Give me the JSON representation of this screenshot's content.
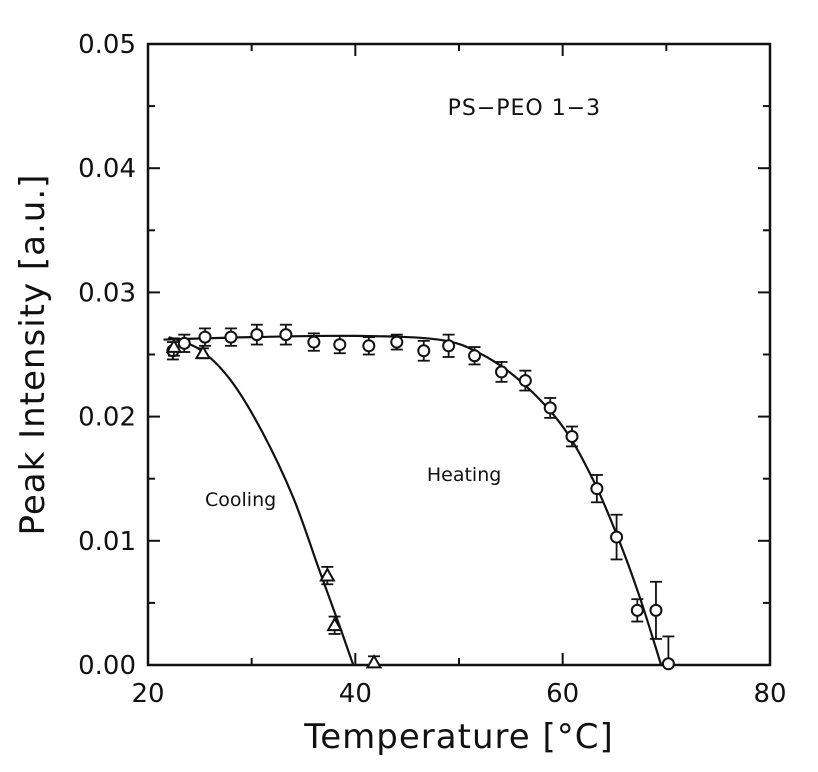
{
  "chart_data": {
    "type": "scatter",
    "title": "",
    "xlabel": "Temperature [°C]",
    "ylabel": "Peak Intensity [a.u.]",
    "xlim": [
      20,
      80
    ],
    "ylim": [
      0,
      0.05
    ],
    "x_ticks": [
      "20",
      "40",
      "60",
      "80"
    ],
    "y_ticks": [
      "0.00",
      "0.01",
      "0.02",
      "0.03",
      "0.04",
      "0.05"
    ],
    "annotations": {
      "sample": "PS−PEO 1−3",
      "heating": "Heating",
      "cooling": "Cooling"
    },
    "series": [
      {
        "name": "Heating",
        "marker": "circle",
        "points": [
          {
            "x": 22.4,
            "y": 0.0253,
            "err": 0.0007
          },
          {
            "x": 23.5,
            "y": 0.0259,
            "err": 0.0007
          },
          {
            "x": 25.5,
            "y": 0.0264,
            "err": 0.0007
          },
          {
            "x": 28.0,
            "y": 0.0264,
            "err": 0.0007
          },
          {
            "x": 30.5,
            "y": 0.0266,
            "err": 0.0008
          },
          {
            "x": 33.3,
            "y": 0.0266,
            "err": 0.0008
          },
          {
            "x": 36.0,
            "y": 0.026,
            "err": 0.0007
          },
          {
            "x": 38.5,
            "y": 0.0258,
            "err": 0.0007
          },
          {
            "x": 41.3,
            "y": 0.0257,
            "err": 0.0007
          },
          {
            "x": 44.0,
            "y": 0.026,
            "err": 0.0006
          },
          {
            "x": 46.6,
            "y": 0.0253,
            "err": 0.0008
          },
          {
            "x": 49.0,
            "y": 0.0257,
            "err": 0.0009
          },
          {
            "x": 51.5,
            "y": 0.0249,
            "err": 0.0007
          },
          {
            "x": 54.1,
            "y": 0.0236,
            "err": 0.0008
          },
          {
            "x": 56.4,
            "y": 0.0229,
            "err": 0.0008
          },
          {
            "x": 58.8,
            "y": 0.0207,
            "err": 0.0008
          },
          {
            "x": 60.9,
            "y": 0.0184,
            "err": 0.0008
          },
          {
            "x": 63.3,
            "y": 0.0142,
            "err": 0.0011
          },
          {
            "x": 65.2,
            "y": 0.0103,
            "err": 0.0018
          },
          {
            "x": 67.2,
            "y": 0.0044,
            "err": 0.0009
          },
          {
            "x": 69.0,
            "y": 0.0044,
            "err": 0.0023
          },
          {
            "x": 70.2,
            "y": 0.0001,
            "err": 0.0022
          }
        ],
        "fit": [
          [
            21.5,
            0.0262
          ],
          [
            30,
            0.0264
          ],
          [
            40,
            0.0265
          ],
          [
            48,
            0.0262
          ],
          [
            52,
            0.0251
          ],
          [
            56,
            0.0228
          ],
          [
            60,
            0.0192
          ],
          [
            63,
            0.0148
          ],
          [
            65.5,
            0.0099
          ],
          [
            67.5,
            0.0053
          ],
          [
            69.5,
            0.0
          ]
        ]
      },
      {
        "name": "Cooling",
        "marker": "triangle",
        "points": [
          {
            "x": 22.5,
            "y": 0.0256,
            "err": 0.0007
          },
          {
            "x": 25.3,
            "y": 0.0251,
            "err": 0.0004
          },
          {
            "x": 37.3,
            "y": 0.0072,
            "err": 0.0007
          },
          {
            "x": 38.0,
            "y": 0.0032,
            "err": 0.0007
          },
          {
            "x": 41.8,
            "y": 0.0002,
            "err": 0.0005
          }
        ],
        "fit": [
          [
            22.0,
            0.0264
          ],
          [
            25,
            0.0254
          ],
          [
            28,
            0.0229
          ],
          [
            31,
            0.0188
          ],
          [
            34,
            0.0135
          ],
          [
            36.5,
            0.0077
          ],
          [
            38.5,
            0.0031
          ],
          [
            39.8,
            0.0
          ]
        ]
      }
    ]
  }
}
